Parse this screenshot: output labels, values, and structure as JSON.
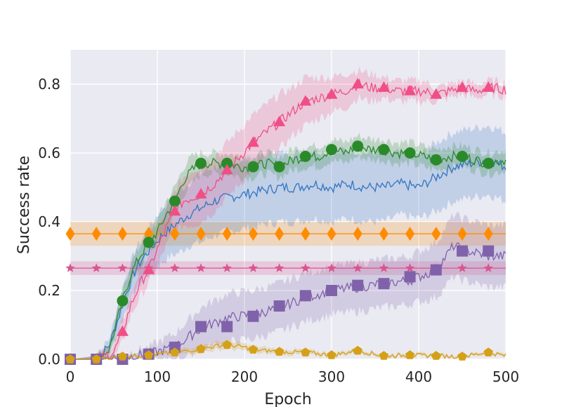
{
  "chart_data": {
    "type": "line",
    "title": "",
    "xlabel": "Epoch",
    "ylabel": "Success rate",
    "xlim": [
      0,
      500
    ],
    "ylim": [
      0,
      0.9
    ],
    "grid": true,
    "background": "#EAEAF2",
    "x_ticks": [
      {
        "value": 0,
        "label": "0"
      },
      {
        "value": 100,
        "label": "100"
      },
      {
        "value": 200,
        "label": "200"
      },
      {
        "value": 300,
        "label": "300"
      },
      {
        "value": 400,
        "label": "400"
      },
      {
        "value": 500,
        "label": "500"
      }
    ],
    "y_ticks": [
      {
        "value": 0.0,
        "label": "0.0"
      },
      {
        "value": 0.2,
        "label": "0.2"
      },
      {
        "value": 0.4,
        "label": "0.4"
      },
      {
        "value": 0.6,
        "label": "0.6"
      },
      {
        "value": 0.8,
        "label": "0.8"
      }
    ],
    "series": [
      {
        "name": "orange-diamond-baseline",
        "color": "#FF8C00",
        "marker": "diamond",
        "x": [
          0,
          30,
          60,
          90,
          120,
          150,
          180,
          210,
          240,
          270,
          300,
          330,
          360,
          390,
          420,
          450,
          480,
          500
        ],
        "y": [
          0.365,
          0.365,
          0.365,
          0.365,
          0.365,
          0.365,
          0.365,
          0.365,
          0.365,
          0.365,
          0.365,
          0.365,
          0.365,
          0.365,
          0.365,
          0.365,
          0.365,
          0.365
        ],
        "band": [
          0.035,
          0.035,
          0.035,
          0.035,
          0.035,
          0.035,
          0.035,
          0.035,
          0.035,
          0.035,
          0.035,
          0.035,
          0.035,
          0.035,
          0.035,
          0.035,
          0.035,
          0.035
        ],
        "marker_x": [
          0,
          30,
          60,
          90,
          120,
          150,
          180,
          210,
          240,
          270,
          300,
          330,
          360,
          390,
          420,
          450,
          480
        ]
      },
      {
        "name": "pink-star-baseline",
        "color": "#D9558F",
        "marker": "star",
        "x": [
          0,
          30,
          60,
          90,
          120,
          150,
          180,
          210,
          240,
          270,
          300,
          330,
          360,
          390,
          420,
          450,
          480,
          500
        ],
        "y": [
          0.265,
          0.265,
          0.265,
          0.265,
          0.265,
          0.265,
          0.265,
          0.265,
          0.265,
          0.265,
          0.265,
          0.265,
          0.265,
          0.265,
          0.265,
          0.265,
          0.265,
          0.265
        ],
        "band": [
          0.02,
          0.02,
          0.02,
          0.02,
          0.02,
          0.02,
          0.02,
          0.02,
          0.02,
          0.02,
          0.02,
          0.02,
          0.02,
          0.02,
          0.02,
          0.02,
          0.02,
          0.02
        ],
        "marker_x": [
          0,
          30,
          60,
          90,
          120,
          150,
          180,
          210,
          240,
          270,
          300,
          330,
          360,
          390,
          420,
          450,
          480
        ]
      },
      {
        "name": "blue-line",
        "color": "#3274C0",
        "marker": "none",
        "x": [
          0,
          30,
          45,
          55,
          65,
          75,
          85,
          95,
          105,
          115,
          125,
          135,
          150,
          165,
          180,
          200,
          220,
          240,
          260,
          280,
          300,
          320,
          340,
          360,
          380,
          400,
          420,
          440,
          460,
          480,
          500
        ],
        "y": [
          0.0,
          0.0,
          0.04,
          0.12,
          0.2,
          0.26,
          0.3,
          0.33,
          0.36,
          0.38,
          0.4,
          0.42,
          0.44,
          0.46,
          0.47,
          0.48,
          0.49,
          0.5,
          0.5,
          0.51,
          0.5,
          0.51,
          0.5,
          0.5,
          0.51,
          0.5,
          0.53,
          0.56,
          0.57,
          0.58,
          0.56
        ],
        "band": [
          0.0,
          0.01,
          0.02,
          0.04,
          0.05,
          0.06,
          0.06,
          0.07,
          0.08,
          0.08,
          0.09,
          0.09,
          0.1,
          0.1,
          0.1,
          0.1,
          0.1,
          0.1,
          0.1,
          0.1,
          0.1,
          0.1,
          0.1,
          0.1,
          0.09,
          0.09,
          0.1,
          0.1,
          0.1,
          0.1,
          0.1
        ]
      },
      {
        "name": "green-circle",
        "color": "#2A8A2A",
        "marker": "circle",
        "x": [
          0,
          30,
          45,
          60,
          70,
          80,
          90,
          100,
          110,
          120,
          130,
          140,
          150,
          165,
          180,
          195,
          210,
          225,
          240,
          255,
          270,
          285,
          300,
          315,
          330,
          345,
          360,
          375,
          390,
          405,
          420,
          435,
          450,
          465,
          480,
          500
        ],
        "y": [
          0.0,
          0.0,
          0.03,
          0.17,
          0.25,
          0.3,
          0.34,
          0.37,
          0.42,
          0.46,
          0.52,
          0.55,
          0.57,
          0.57,
          0.57,
          0.56,
          0.56,
          0.57,
          0.56,
          0.58,
          0.59,
          0.59,
          0.61,
          0.6,
          0.62,
          0.61,
          0.61,
          0.6,
          0.6,
          0.59,
          0.58,
          0.59,
          0.59,
          0.58,
          0.57,
          0.58
        ],
        "band": [
          0.0,
          0.01,
          0.02,
          0.03,
          0.03,
          0.03,
          0.03,
          0.03,
          0.04,
          0.04,
          0.04,
          0.04,
          0.03,
          0.03,
          0.03,
          0.03,
          0.03,
          0.03,
          0.03,
          0.03,
          0.03,
          0.03,
          0.03,
          0.03,
          0.03,
          0.03,
          0.03,
          0.03,
          0.03,
          0.03,
          0.03,
          0.03,
          0.03,
          0.03,
          0.03,
          0.03
        ],
        "marker_x": [
          0,
          30,
          60,
          90,
          120,
          150,
          180,
          210,
          240,
          270,
          300,
          330,
          360,
          390,
          420,
          450,
          480
        ]
      },
      {
        "name": "pink-triangle",
        "color": "#F04E85",
        "marker": "triangle",
        "x": [
          0,
          30,
          50,
          60,
          70,
          80,
          90,
          100,
          110,
          120,
          130,
          140,
          150,
          165,
          180,
          195,
          210,
          225,
          240,
          255,
          270,
          285,
          300,
          315,
          330,
          345,
          360,
          375,
          390,
          405,
          420,
          435,
          450,
          465,
          480,
          500
        ],
        "y": [
          0.0,
          0.0,
          0.02,
          0.08,
          0.16,
          0.22,
          0.26,
          0.32,
          0.38,
          0.43,
          0.46,
          0.47,
          0.48,
          0.51,
          0.55,
          0.59,
          0.63,
          0.66,
          0.69,
          0.72,
          0.75,
          0.76,
          0.77,
          0.78,
          0.8,
          0.79,
          0.79,
          0.78,
          0.78,
          0.78,
          0.77,
          0.78,
          0.79,
          0.78,
          0.79,
          0.785
        ],
        "band": [
          0.0,
          0.01,
          0.02,
          0.03,
          0.03,
          0.04,
          0.04,
          0.05,
          0.05,
          0.06,
          0.07,
          0.08,
          0.08,
          0.08,
          0.08,
          0.08,
          0.08,
          0.08,
          0.08,
          0.07,
          0.07,
          0.06,
          0.05,
          0.05,
          0.04,
          0.04,
          0.03,
          0.03,
          0.03,
          0.03,
          0.02,
          0.02,
          0.02,
          0.02,
          0.02,
          0.02
        ],
        "marker_x": [
          0,
          30,
          60,
          90,
          120,
          150,
          180,
          210,
          240,
          270,
          300,
          330,
          360,
          390,
          420,
          450,
          480
        ]
      },
      {
        "name": "purple-square",
        "color": "#8062AA",
        "marker": "square",
        "x": [
          0,
          30,
          60,
          90,
          120,
          150,
          180,
          210,
          240,
          270,
          300,
          330,
          360,
          390,
          420,
          440,
          450,
          465,
          480,
          500
        ],
        "y": [
          0.0,
          0.0,
          0.005,
          0.015,
          0.035,
          0.09,
          0.12,
          0.13,
          0.15,
          0.18,
          0.2,
          0.21,
          0.22,
          0.23,
          0.26,
          0.33,
          0.32,
          0.31,
          0.3,
          0.3
        ],
        "band": [
          0.0,
          0.005,
          0.01,
          0.02,
          0.04,
          0.06,
          0.07,
          0.07,
          0.07,
          0.07,
          0.07,
          0.07,
          0.07,
          0.07,
          0.08,
          0.09,
          0.09,
          0.09,
          0.09,
          0.09
        ],
        "marker_x": [
          0,
          30,
          60,
          90,
          120,
          150,
          180,
          210,
          240,
          270,
          300,
          330,
          360,
          390,
          420,
          450,
          480
        ],
        "marker_y": [
          0.0,
          0.0,
          0.0,
          0.015,
          0.035,
          0.095,
          0.095,
          0.125,
          0.155,
          0.185,
          0.2,
          0.215,
          0.22,
          0.24,
          0.26,
          0.315,
          0.315
        ]
      },
      {
        "name": "gold-pentagon",
        "color": "#D4A017",
        "marker": "pentagon",
        "x": [
          0,
          30,
          60,
          90,
          120,
          150,
          170,
          180,
          200,
          210,
          240,
          270,
          300,
          330,
          360,
          390,
          420,
          450,
          480,
          500
        ],
        "y": [
          0.0,
          0.0,
          0.008,
          0.012,
          0.02,
          0.03,
          0.04,
          0.042,
          0.035,
          0.028,
          0.022,
          0.02,
          0.012,
          0.025,
          0.01,
          0.012,
          0.01,
          0.008,
          0.02,
          0.01
        ],
        "band": [
          0.0,
          0.003,
          0.005,
          0.006,
          0.008,
          0.01,
          0.012,
          0.012,
          0.01,
          0.01,
          0.008,
          0.008,
          0.006,
          0.006,
          0.005,
          0.005,
          0.005,
          0.005,
          0.005,
          0.005
        ],
        "marker_x": [
          0,
          30,
          60,
          90,
          120,
          150,
          180,
          210,
          240,
          270,
          300,
          330,
          360,
          390,
          420,
          450,
          480
        ]
      }
    ]
  }
}
